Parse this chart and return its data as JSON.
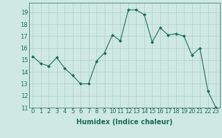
{
  "x": [
    0,
    1,
    2,
    3,
    4,
    5,
    6,
    7,
    8,
    9,
    10,
    11,
    12,
    13,
    14,
    15,
    16,
    17,
    18,
    19,
    20,
    21,
    22,
    23
  ],
  "y": [
    15.3,
    14.7,
    14.5,
    15.2,
    14.3,
    13.7,
    13.0,
    13.0,
    14.9,
    15.6,
    17.1,
    16.6,
    19.2,
    19.2,
    18.8,
    16.5,
    17.7,
    17.1,
    17.2,
    17.0,
    15.4,
    16.0,
    12.4,
    11.0
  ],
  "xlim": [
    -0.5,
    23.5
  ],
  "ylim": [
    11,
    19.8
  ],
  "yticks": [
    11,
    12,
    13,
    14,
    15,
    16,
    17,
    18,
    19
  ],
  "xticks": [
    0,
    1,
    2,
    3,
    4,
    5,
    6,
    7,
    8,
    9,
    10,
    11,
    12,
    13,
    14,
    15,
    16,
    17,
    18,
    19,
    20,
    21,
    22,
    23
  ],
  "xlabel": "Humidex (Indice chaleur)",
  "line_color": "#1a6b5a",
  "marker": "D",
  "marker_size": 2,
  "bg_color": "#cfe8e4",
  "grid_color": "#aacfcb",
  "tick_label_fontsize": 6,
  "xlabel_fontsize": 7
}
